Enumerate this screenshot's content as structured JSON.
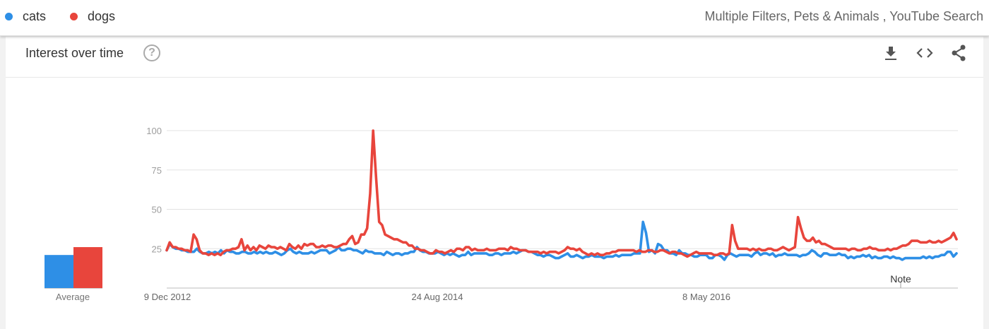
{
  "legend": [
    {
      "label": "cats",
      "color": "#2e8fe6"
    },
    {
      "label": "dogs",
      "color": "#e8453c"
    }
  ],
  "filters_text": "Multiple Filters, Pets & Animals , YouTube Search",
  "card": {
    "title": "Interest over time",
    "icons": [
      "help-icon",
      "download-icon",
      "embed-icon",
      "share-icon"
    ]
  },
  "chart_data": {
    "type": "line",
    "ylim": [
      0,
      100
    ],
    "yticks": [
      "100",
      "75",
      "50",
      "25"
    ],
    "xlabels": [
      "9 Dec 2012",
      "24 Aug 2014",
      "8 May 2016"
    ],
    "note": "Note",
    "average_label": "Average",
    "averages": [
      {
        "name": "cats",
        "value": 21
      },
      {
        "name": "dogs",
        "value": 26
      }
    ],
    "series": [
      {
        "name": "cats",
        "color": "#2e8fe6",
        "values": [
          24,
          28,
          26,
          25,
          25,
          24,
          24,
          23,
          23,
          23,
          25,
          23,
          22,
          22,
          23,
          22,
          23,
          22,
          24,
          22,
          24,
          23,
          23,
          22,
          22,
          23,
          23,
          22,
          22,
          23,
          22,
          23,
          22,
          23,
          22,
          22,
          23,
          22,
          21,
          22,
          24,
          25,
          23,
          22,
          23,
          22,
          22,
          22,
          23,
          22,
          23,
          24,
          24,
          24,
          22,
          23,
          24,
          26,
          24,
          24,
          25,
          25,
          24,
          24,
          23,
          22,
          24,
          23,
          23,
          22,
          22,
          22,
          21,
          23,
          22,
          21,
          22,
          22,
          21,
          22,
          22,
          23,
          23,
          26,
          24,
          23,
          23,
          22,
          22,
          22,
          23,
          22,
          21,
          22,
          21,
          22,
          21,
          20,
          21,
          21,
          23,
          21,
          22,
          22,
          22,
          22,
          22,
          21,
          21,
          22,
          22,
          21,
          22,
          22,
          22,
          23,
          22,
          23,
          24,
          24,
          23,
          23,
          22,
          21,
          21,
          20,
          21,
          21,
          20,
          19,
          19,
          20,
          21,
          22,
          20,
          20,
          21,
          20,
          19,
          20,
          20,
          21,
          20,
          20,
          20,
          19,
          20,
          20,
          20,
          21,
          20,
          21,
          21,
          21,
          21,
          22,
          22,
          22,
          42,
          35,
          23,
          24,
          22,
          28,
          27,
          24,
          24,
          22,
          22,
          21,
          24,
          22,
          22,
          21,
          21,
          20,
          20,
          21,
          21,
          21,
          19,
          19,
          21,
          21,
          20,
          18,
          21,
          22,
          21,
          20,
          21,
          21,
          21,
          21,
          20,
          22,
          23,
          21,
          22,
          22,
          21,
          22,
          20,
          21,
          21,
          22,
          21,
          21,
          21,
          21,
          20,
          21,
          21,
          22,
          24,
          23,
          21,
          20,
          22,
          22,
          21,
          21,
          21,
          22,
          21,
          21,
          19,
          20,
          19,
          20,
          20,
          21,
          20,
          21,
          19,
          20,
          19,
          19,
          20,
          20,
          19,
          20,
          19,
          19,
          18,
          19,
          19,
          19,
          19,
          19,
          19,
          20,
          19,
          20,
          19,
          20,
          20,
          21,
          21,
          23,
          23,
          20,
          22
        ]
      },
      {
        "name": "dogs",
        "color": "#e8453c",
        "values": [
          24,
          29,
          26,
          26,
          25,
          25,
          24,
          24,
          23,
          34,
          31,
          24,
          22,
          22,
          21,
          22,
          21,
          22,
          21,
          23,
          24,
          24,
          25,
          25,
          26,
          31,
          24,
          27,
          24,
          26,
          24,
          27,
          26,
          25,
          27,
          26,
          26,
          25,
          26,
          25,
          24,
          28,
          26,
          25,
          27,
          25,
          28,
          27,
          28,
          28,
          26,
          26,
          27,
          26,
          27,
          27,
          26,
          26,
          27,
          28,
          28,
          31,
          33,
          28,
          29,
          34,
          34,
          38,
          60,
          100,
          70,
          42,
          40,
          34,
          33,
          32,
          31,
          31,
          30,
          29,
          29,
          27,
          27,
          25,
          25,
          24,
          24,
          23,
          22,
          22,
          24,
          23,
          23,
          22,
          23,
          24,
          23,
          25,
          25,
          24,
          26,
          26,
          24,
          25,
          24,
          24,
          24,
          25,
          24,
          24,
          24,
          25,
          25,
          25,
          24,
          26,
          25,
          25,
          24,
          24,
          24,
          23,
          23,
          23,
          23,
          22,
          23,
          22,
          23,
          23,
          23,
          22,
          23,
          24,
          26,
          25,
          25,
          24,
          25,
          23,
          22,
          21,
          22,
          21,
          22,
          21,
          21,
          22,
          22,
          23,
          23,
          24,
          24,
          24,
          24,
          24,
          24,
          23,
          24,
          23,
          23,
          24,
          24,
          23,
          23,
          24,
          24,
          23,
          22,
          23,
          23,
          22,
          22,
          21,
          20,
          21,
          22,
          23,
          22,
          22,
          22,
          22,
          22,
          21,
          21,
          22,
          22,
          21,
          22,
          40,
          30,
          25,
          25,
          25,
          25,
          24,
          25,
          24,
          25,
          24,
          24,
          25,
          25,
          24,
          24,
          25,
          26,
          25,
          24,
          25,
          26,
          45,
          38,
          32,
          30,
          30,
          32,
          29,
          30,
          28,
          28,
          27,
          26,
          25,
          25,
          25,
          25,
          25,
          24,
          25,
          25,
          24,
          24,
          25,
          25,
          26,
          25,
          25,
          24,
          24,
          24,
          25,
          24,
          25,
          25,
          26,
          27,
          27,
          28,
          30,
          30,
          30,
          29,
          29,
          29,
          30,
          29,
          29,
          30,
          29,
          30,
          31,
          32,
          35,
          31
        ]
      }
    ]
  }
}
